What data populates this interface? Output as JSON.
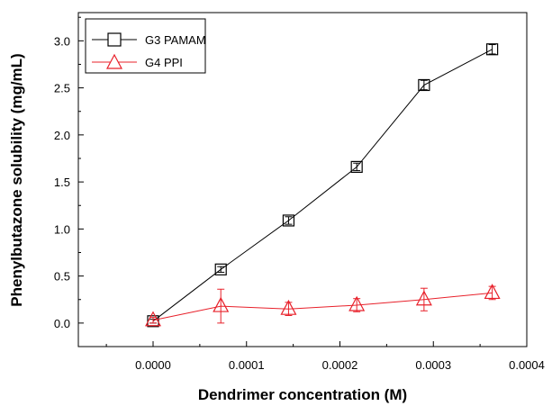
{
  "chart_data": {
    "type": "line",
    "title": "",
    "xlabel": "Dendrimer concentration (M)",
    "ylabel": "Phenylbutazone solubility (mg/mL)",
    "xlim": [
      -8e-05,
      0.0004
    ],
    "ylim": [
      -0.25,
      3.3
    ],
    "x_ticks": [
      "0.0000",
      "0.0001",
      "0.0002",
      "0.0003",
      "0.0004"
    ],
    "x_tick_values": [
      0,
      0.0001,
      0.0002,
      0.0003,
      0.0004
    ],
    "y_ticks": [
      "0.0",
      "0.5",
      "1.0",
      "1.5",
      "2.0",
      "2.5",
      "3.0"
    ],
    "y_tick_values": [
      0,
      0.5,
      1.0,
      1.5,
      2.0,
      2.5,
      3.0
    ],
    "grid": false,
    "legend_position": "top-left",
    "series": [
      {
        "name": "G3 PAMAM",
        "color": "#000000",
        "marker": "square",
        "x": [
          0,
          7.25e-05,
          0.000145,
          0.000218,
          0.00029,
          0.000363
        ],
        "y": [
          0.02,
          0.57,
          1.09,
          1.66,
          2.53,
          2.91
        ],
        "err": [
          0.02,
          0.03,
          0.04,
          0.04,
          0.05,
          0.05
        ]
      },
      {
        "name": "G4 PPI",
        "color": "#e8202a",
        "marker": "triangle",
        "x": [
          0,
          7.25e-05,
          0.000145,
          0.000218,
          0.00029,
          0.000363
        ],
        "y": [
          0.03,
          0.18,
          0.15,
          0.19,
          0.25,
          0.32
        ],
        "err": [
          0.03,
          0.18,
          0.07,
          0.07,
          0.12,
          0.07
        ]
      }
    ]
  }
}
